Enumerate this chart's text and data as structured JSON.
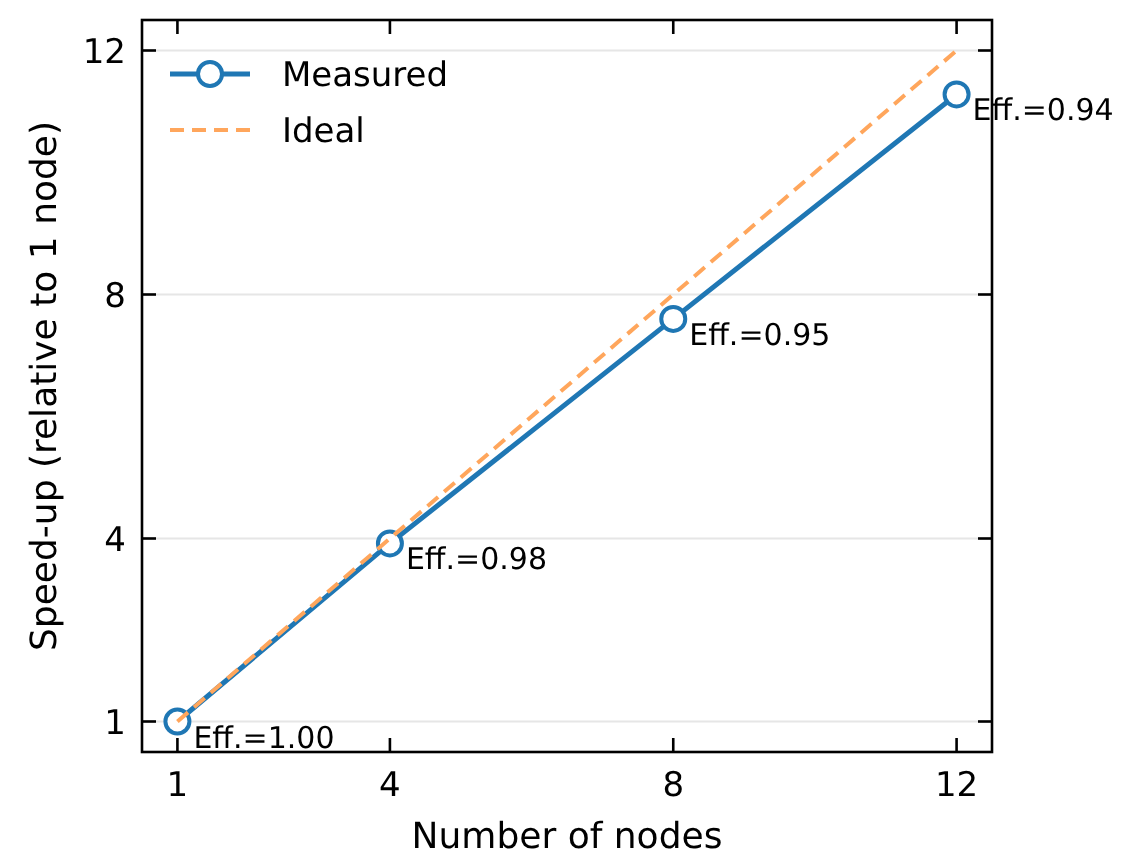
{
  "chart_data": {
    "type": "line",
    "xlabel": "Number of nodes",
    "ylabel": "Speed-up (relative to 1 node)",
    "x": [
      1,
      4,
      8,
      12
    ],
    "series": [
      {
        "name": "Measured",
        "color": "#1f77b4",
        "values": [
          1,
          3.92,
          7.6,
          11.28
        ],
        "marker": "circle",
        "line_style": "solid"
      },
      {
        "name": "Ideal",
        "color": "#ffa65c",
        "values": [
          1,
          4,
          8,
          12
        ],
        "marker": "none",
        "line_style": "dashed"
      }
    ],
    "xlim": [
      0.5,
      12.5
    ],
    "ylim": [
      0.5,
      12.5
    ],
    "xticks": [
      1,
      4,
      8,
      12
    ],
    "yticks": [
      1,
      4,
      8,
      12
    ],
    "grid": "y",
    "legend": "top left",
    "annotations": [
      {
        "text": "Eff.=1.00",
        "x": 1,
        "y": 1
      },
      {
        "text": "Eff.=0.98",
        "x": 4,
        "y": 3.92
      },
      {
        "text": "Eff.=0.95",
        "x": 8,
        "y": 7.6
      },
      {
        "text": "Eff.=0.94",
        "x": 12,
        "y": 11.28
      }
    ]
  }
}
